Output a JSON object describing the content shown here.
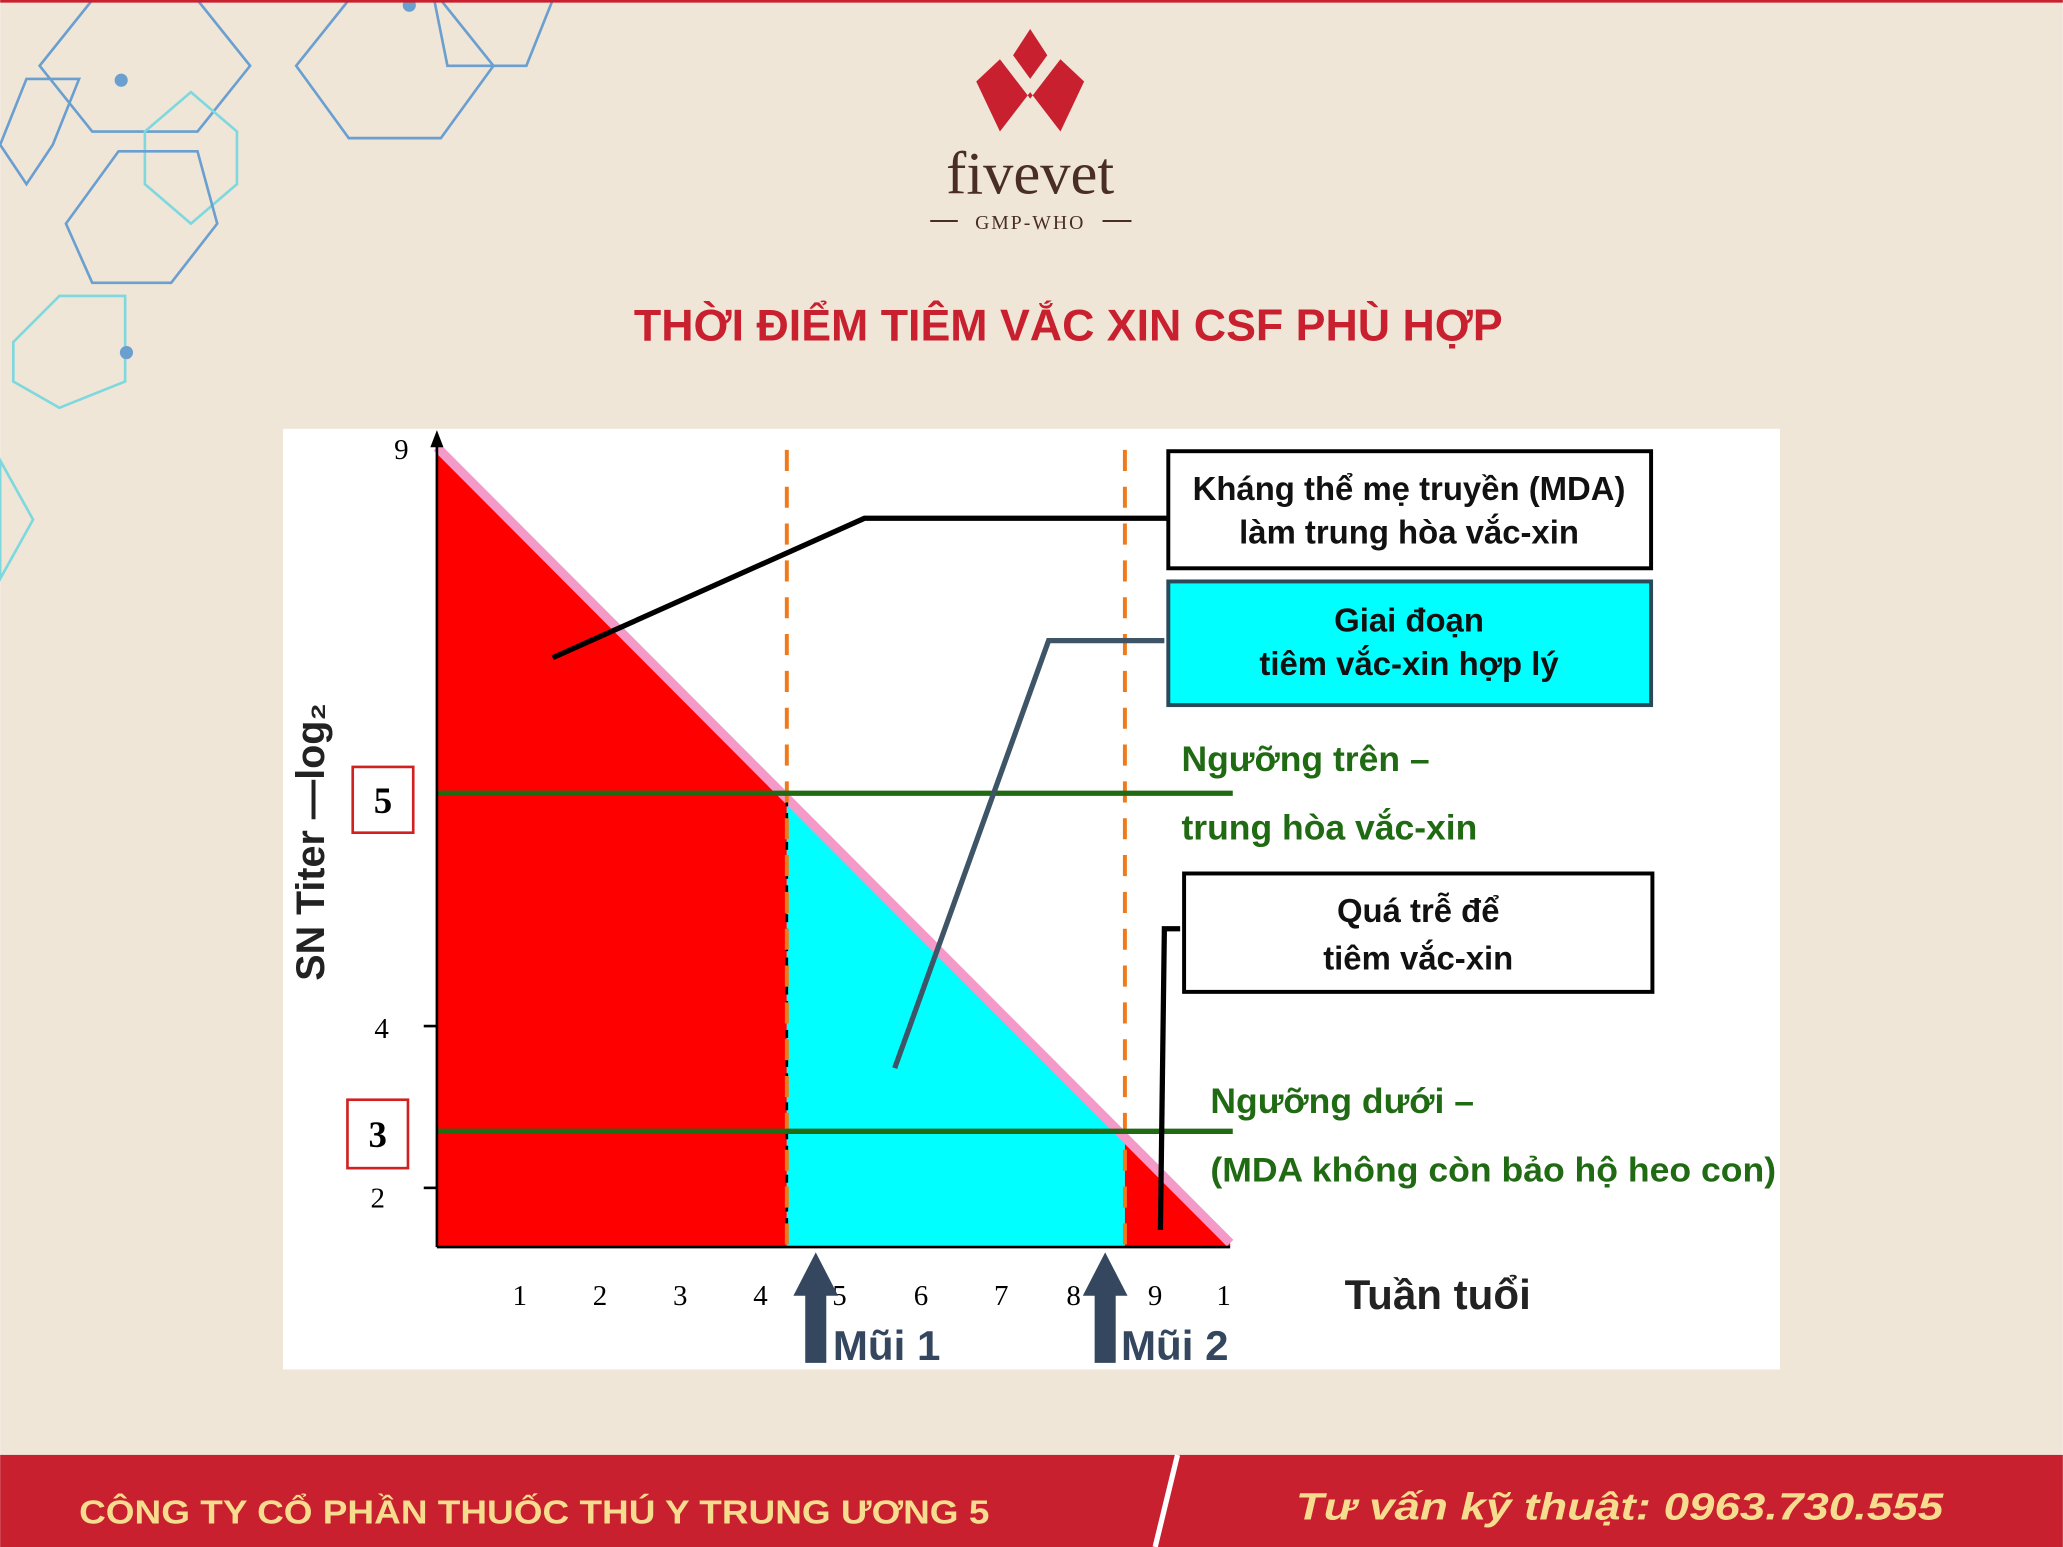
{
  "logo": {
    "name": "fivevet",
    "tagline": "GMP-WHO"
  },
  "title": "THỜI ĐIỂM TIÊM VẮC XIN CSF PHÙ HỢP",
  "diagram": {
    "y_axis_label": "SN Titer —log₂",
    "y_ticks": [
      "9",
      "5",
      "4",
      "3",
      "2"
    ],
    "x_ticks": [
      "1",
      "2",
      "3",
      "4",
      "5",
      "6",
      "7",
      "8",
      "9",
      "1"
    ],
    "x_axis_label": "Tuần tuổi",
    "callouts": [
      {
        "lines": [
          "Kháng thể mẹ truyền (MDA)",
          "làm trung hòa vắc-xin"
        ]
      },
      {
        "lines": [
          "Giai đoạn",
          "tiêm vắc-xin hợp lý"
        ]
      },
      {
        "lines": [
          "Quá trễ để",
          "tiêm vắc-xin"
        ]
      }
    ],
    "thresholds": [
      {
        "lines": [
          "Ngưỡng trên –",
          "trung hòa vắc-xin"
        ]
      },
      {
        "lines": [
          "Ngưỡng dưới –",
          "(MDA không còn bảo hộ heo con)"
        ]
      }
    ],
    "shots": [
      "Mũi 1",
      "Mũi 2"
    ]
  },
  "footer": {
    "company": "CÔNG TY CỔ PHẦN THUỐC THÚ Y TRUNG ƯƠNG 5",
    "hotline": "Tư vấn kỹ thuật: 0963.730.555"
  }
}
